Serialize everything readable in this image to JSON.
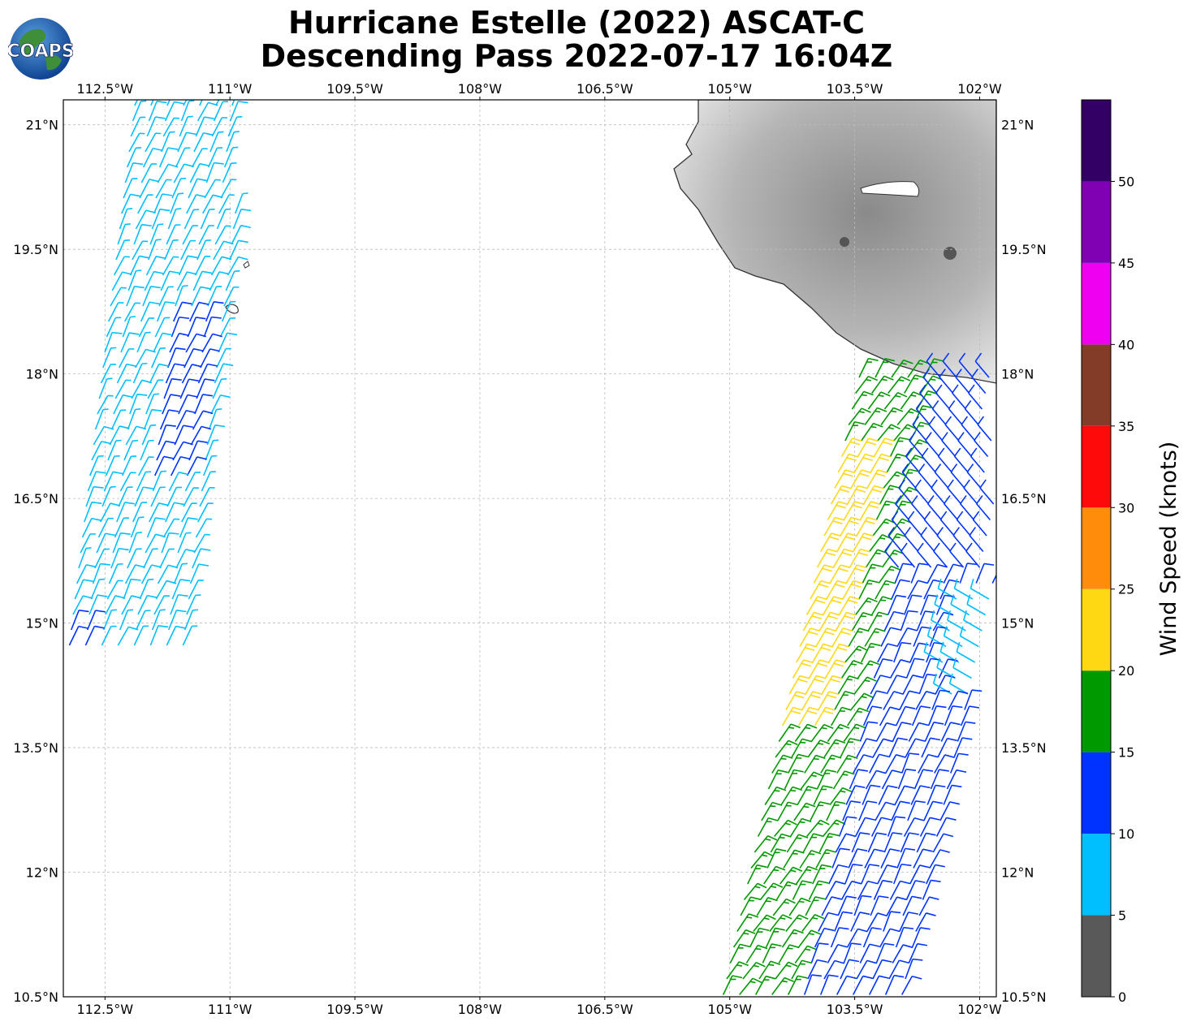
{
  "header": {
    "title_line1": "Hurricane Estelle (2022) ASCAT-C",
    "title_line2": "Descending Pass 2022-07-17 16:04Z",
    "logo_text": "COAPS"
  },
  "map": {
    "lon_range": [
      -113.0,
      -101.8
    ],
    "lat_range": [
      10.5,
      21.3
    ],
    "lon_ticks": [
      {
        "value": -112.5,
        "label": "112.5°W"
      },
      {
        "value": -111.0,
        "label": "111°W"
      },
      {
        "value": -109.5,
        "label": "109.5°W"
      },
      {
        "value": -108.0,
        "label": "108°W"
      },
      {
        "value": -106.5,
        "label": "106.5°W"
      },
      {
        "value": -105.0,
        "label": "105°W"
      },
      {
        "value": -103.5,
        "label": "103.5°W"
      },
      {
        "value": -102.0,
        "label": "102°W"
      }
    ],
    "lat_ticks": [
      {
        "value": 21.0,
        "label": "21°N"
      },
      {
        "value": 19.5,
        "label": "19.5°N"
      },
      {
        "value": 18.0,
        "label": "18°N"
      },
      {
        "value": 16.5,
        "label": "16.5°N"
      },
      {
        "value": 15.0,
        "label": "15°N"
      },
      {
        "value": 13.5,
        "label": "13.5°N"
      },
      {
        "value": 12.0,
        "label": "12°N"
      },
      {
        "value": 10.5,
        "label": "10.5°N"
      }
    ],
    "gridlines": true,
    "land_color": "#a8a8a8",
    "coast_color": "#333333"
  },
  "colorbar": {
    "label": "Wind Speed (knots)",
    "ticks": [
      "0",
      "5",
      "10",
      "15",
      "20",
      "25",
      "30",
      "35",
      "40",
      "45",
      "50"
    ],
    "bins": [
      {
        "min": 0,
        "max": 5,
        "color": "#595959"
      },
      {
        "min": 5,
        "max": 10,
        "color": "#00bfff"
      },
      {
        "min": 10,
        "max": 15,
        "color": "#0033ff"
      },
      {
        "min": 15,
        "max": 20,
        "color": "#009900"
      },
      {
        "min": 20,
        "max": 25,
        "color": "#ffd814"
      },
      {
        "min": 25,
        "max": 30,
        "color": "#ff8c0a"
      },
      {
        "min": 30,
        "max": 35,
        "color": "#ff0a0a"
      },
      {
        "min": 35,
        "max": 40,
        "color": "#823c28"
      },
      {
        "min": 40,
        "max": 45,
        "color": "#f000f0"
      },
      {
        "min": 45,
        "max": 50,
        "color": "#8000b3"
      },
      {
        "min": 50,
        "max": 55,
        "color": "#330066"
      }
    ]
  }
}
